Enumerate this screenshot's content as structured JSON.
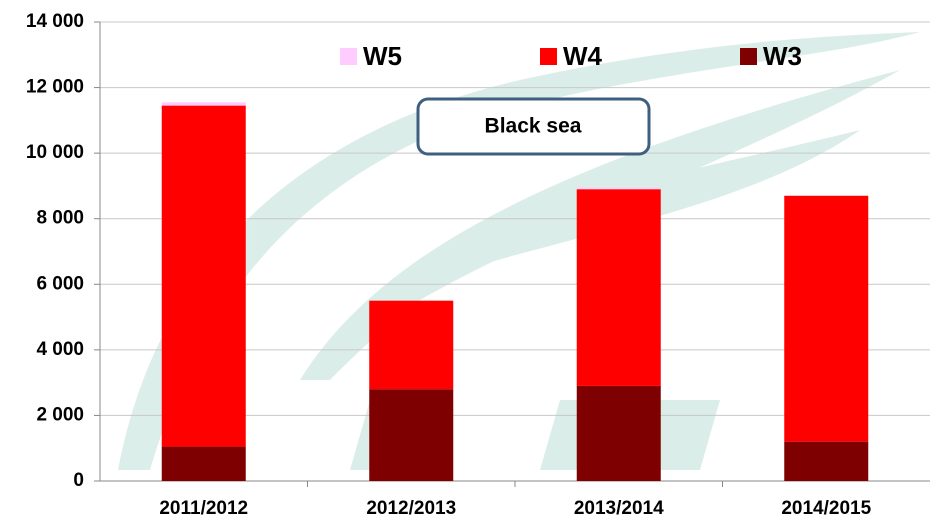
{
  "chart_data": {
    "type": "stacked_bar",
    "annotation": "Black sea",
    "categories": [
      "2011/2012",
      "2012/2013",
      "2013/2014",
      "2014/2015"
    ],
    "series": [
      {
        "name": "W5",
        "color": "#ffccff",
        "values": [
          100,
          0,
          50,
          0
        ]
      },
      {
        "name": "W4",
        "color": "#ff0000",
        "values": [
          10400,
          2700,
          6000,
          7500
        ]
      },
      {
        "name": "W3",
        "color": "#7f0000",
        "values": [
          1050,
          2800,
          2900,
          1200
        ]
      }
    ],
    "ylim": [
      0,
      14000
    ],
    "yticks": [
      0,
      {
        "value": 2000,
        "label": "2 000"
      },
      {
        "value": 4000,
        "label": "4 000"
      },
      {
        "value": 6000,
        "label": "6 000"
      },
      {
        "value": 8000,
        "label": "8 000"
      },
      {
        "value": 10000,
        "label": "10 000"
      },
      {
        "value": 12000,
        "label": "12 000"
      },
      {
        "value": 14000,
        "label": "14 000"
      }
    ],
    "grid": true
  }
}
